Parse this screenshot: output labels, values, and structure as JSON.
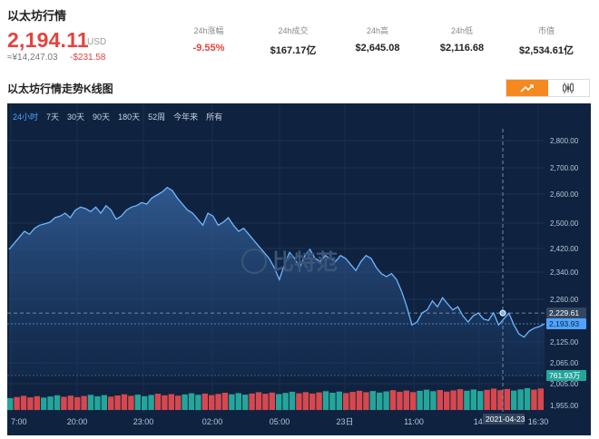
{
  "header": {
    "title": "以太坊行情",
    "price": "2,194.11",
    "currency": "USD",
    "price_cny": "≈¥14,247.03",
    "change_amount": "-$231.58"
  },
  "stats": [
    {
      "label": "24h涨幅",
      "value": "-9.55%",
      "negative": true
    },
    {
      "label": "24h成交",
      "value": "$167.17亿",
      "negative": false
    },
    {
      "label": "24h高",
      "value": "$2,645.08",
      "negative": false
    },
    {
      "label": "24h低",
      "value": "$2,116.68",
      "negative": false
    },
    {
      "label": "市值",
      "value": "$2,534.61亿",
      "negative": false
    }
  ],
  "chart_section": {
    "title": "以太坊行情走势K线图",
    "modes": [
      {
        "name": "line-chart",
        "active": true
      },
      {
        "name": "candlestick",
        "active": false
      }
    ],
    "ranges": [
      "24小时",
      "7天",
      "30天",
      "90天",
      "180天",
      "52周",
      "今年来",
      "所有"
    ],
    "active_range": "24小时",
    "watermark": "比特范"
  },
  "colors": {
    "up": "#e5433f",
    "bg": "#0f2340",
    "line": "#6fb7ff",
    "vol_red": "#d6484e",
    "vol_green": "#25a59a",
    "accent": "#f5891f"
  },
  "chart_data": {
    "type": "area",
    "y_ticks": [
      "2,800.00",
      "2,700.00",
      "2,600.00",
      "2,500.00",
      "2,420.00",
      "2,340.00",
      "2,260.00",
      "2,125.00",
      "2,065.00",
      "2,005.00",
      "1,955.00"
    ],
    "x_ticks": [
      "7:00",
      "20:00",
      "23:00",
      "02:00",
      "05:00",
      "23日",
      "11:00",
      "14:",
      "16:30"
    ],
    "crosshair": {
      "price": "2,229.61",
      "date": "2021-04-23"
    },
    "last_price_label": "2,193.93",
    "volume_label": "761.93万",
    "series": [
      {
        "values": [
          2440,
          2460,
          2480,
          2500,
          2490,
          2510,
          2520,
          2525,
          2530,
          2545,
          2550,
          2560,
          2545,
          2570,
          2580,
          2575,
          2565,
          2580,
          2560,
          2585,
          2570,
          2540,
          2550,
          2570,
          2580,
          2585,
          2595,
          2590,
          2610,
          2620,
          2630,
          2645,
          2635,
          2610,
          2590,
          2570,
          2560,
          2540,
          2520,
          2560,
          2550,
          2520,
          2530,
          2545,
          2520,
          2500,
          2510,
          2490,
          2470,
          2450,
          2430,
          2410,
          2380,
          2340,
          2390,
          2430,
          2410,
          2380,
          2420,
          2440,
          2410,
          2400,
          2420,
          2410,
          2400,
          2420,
          2410,
          2390,
          2370,
          2400,
          2420,
          2410,
          2380,
          2360,
          2350,
          2360,
          2340,
          2300,
          2250,
          2190,
          2200,
          2230,
          2240,
          2270,
          2250,
          2280,
          2260,
          2240,
          2250,
          2220,
          2200,
          2220,
          2230,
          2210,
          2205,
          2230,
          2190,
          2210,
          2229,
          2190,
          2160,
          2150,
          2170,
          2180,
          2185,
          2194
        ]
      }
    ],
    "volume_pattern": "mixed-red-green"
  }
}
